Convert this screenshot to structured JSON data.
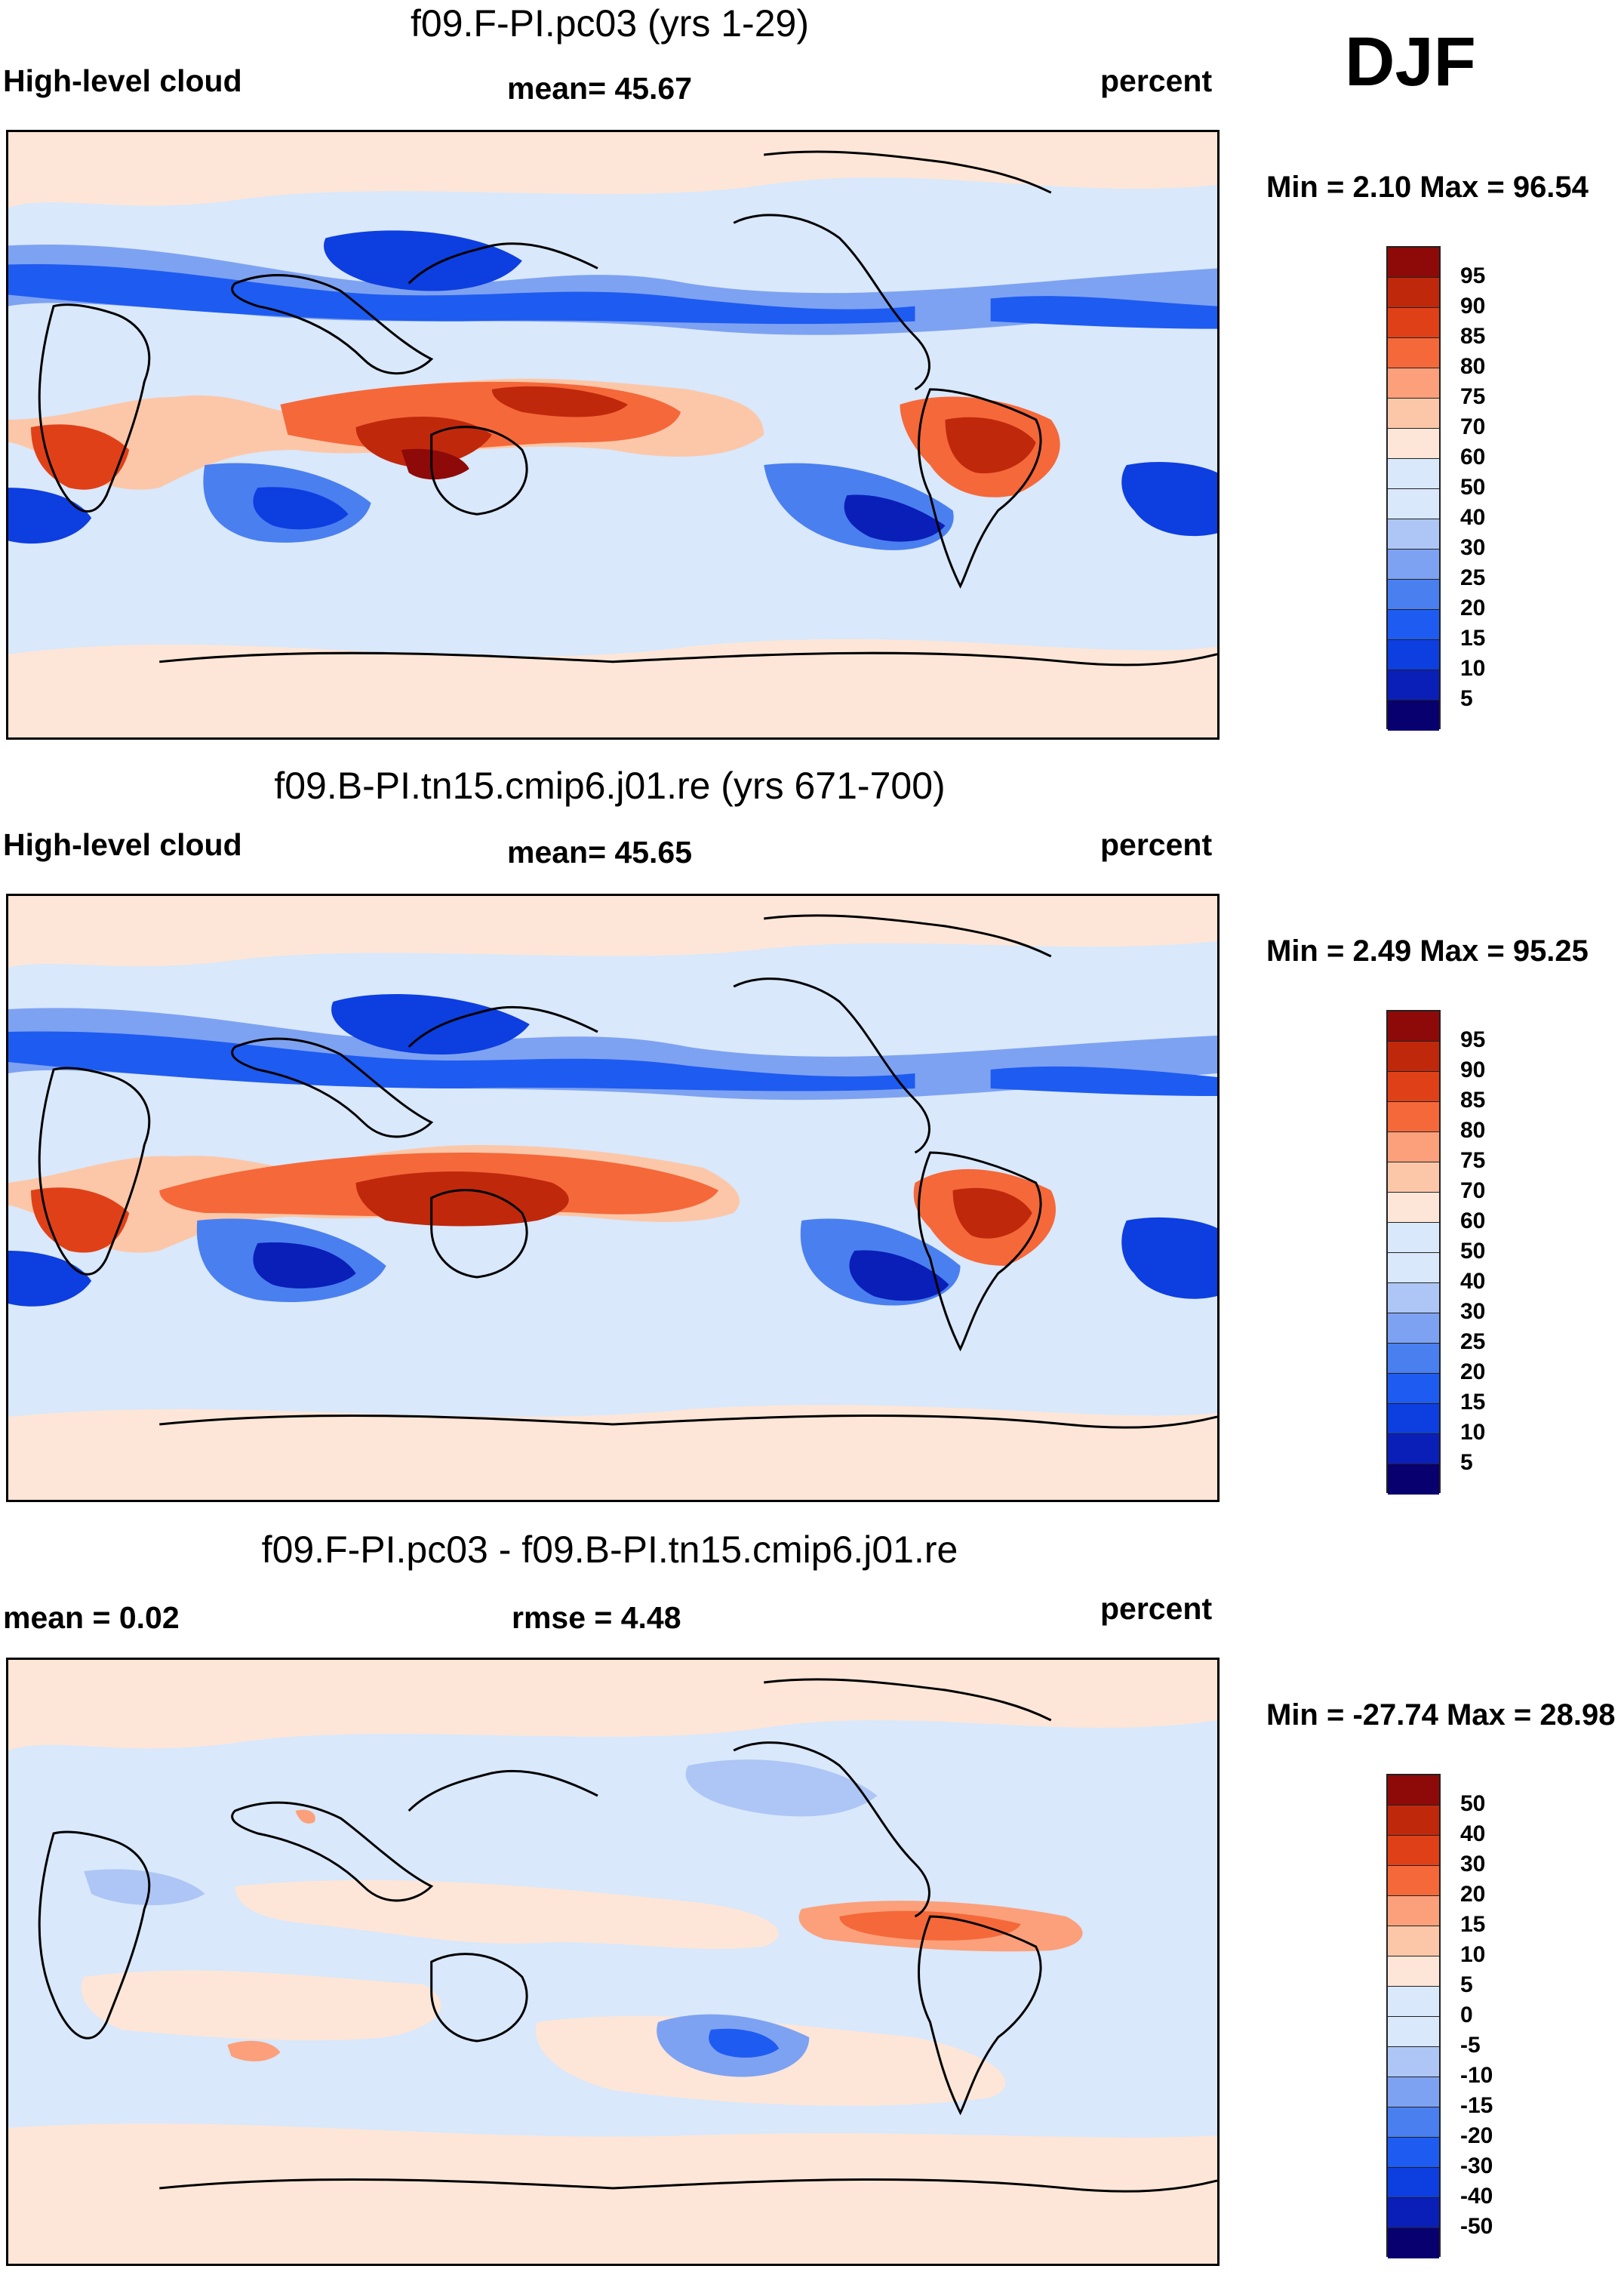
{
  "season": "DJF",
  "colors": {
    "palette": [
      "#08006e",
      "#0a1fb8",
      "#0d3ee0",
      "#1e5bf0",
      "#4a7ff0",
      "#7ea2f2",
      "#aec6f6",
      "#d9e8fb",
      "#fde6d8",
      "#fcc7a8",
      "#fba07a",
      "#f5683a",
      "#e04018",
      "#c0280c",
      "#8e0a08"
    ],
    "coast": "#000000"
  },
  "panels": [
    {
      "title": "f09.F-PI.pc03 (yrs 1-29)",
      "left": "High-level cloud",
      "center": "mean=  45.67",
      "right": "percent",
      "minmax": "Min =   2.10 Max =  96.54",
      "colorbar": [
        "95",
        "90",
        "85",
        "80",
        "75",
        "70",
        "60",
        "50",
        "40",
        "30",
        "25",
        "20",
        "15",
        "10",
        "5"
      ],
      "icons": {
        "map": "global-contour-map-icon"
      }
    },
    {
      "title": "f09.B-PI.tn15.cmip6.j01.re (yrs 671-700)",
      "left": "High-level cloud",
      "center": "mean=  45.65",
      "right": "percent",
      "minmax": "Min =   2.49 Max =  95.25",
      "colorbar": [
        "95",
        "90",
        "85",
        "80",
        "75",
        "70",
        "60",
        "50",
        "40",
        "30",
        "25",
        "20",
        "15",
        "10",
        "5"
      ],
      "icons": {
        "map": "global-contour-map-icon"
      }
    },
    {
      "title": "f09.F-PI.pc03 - f09.B-PI.tn15.cmip6.j01.re",
      "left": "mean =   0.02",
      "center": "rmse =    4.48",
      "right": "percent",
      "minmax": "Min = -27.74 Max =  28.98",
      "colorbar": [
        "50",
        "40",
        "30",
        "20",
        "15",
        "10",
        "5",
        "0",
        "-5",
        "-10",
        "-15",
        "-20",
        "-30",
        "-40",
        "-50"
      ],
      "icons": {
        "map": "global-difference-contour-map-icon"
      }
    }
  ]
}
